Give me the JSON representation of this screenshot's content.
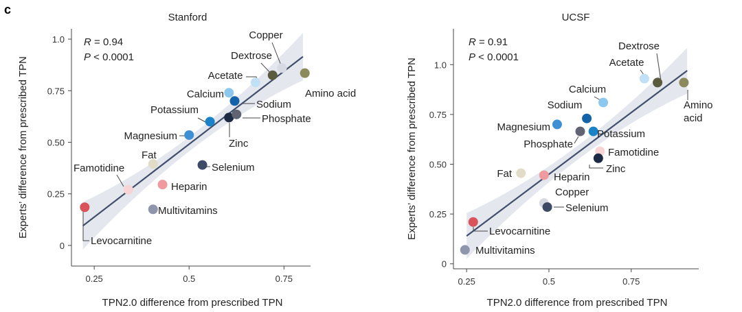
{
  "panel_letter": "c",
  "chart_data": [
    {
      "type": "scatter",
      "title": "Stanford",
      "xlabel": "TPN2.0 difference from prescribed TPN",
      "ylabel": "Experts’ difference from prescribed TPN",
      "xlim": [
        0.19,
        0.82
      ],
      "ylim": [
        -0.1,
        1.05
      ],
      "xticks": [
        0.25,
        0.5,
        0.75
      ],
      "xtick_labels": [
        "0.25",
        "0.5",
        "0.75"
      ],
      "yticks": [
        0,
        0.25,
        0.5,
        0.75,
        1.0
      ],
      "ytick_labels": [
        "0",
        "0.25",
        "0.50",
        "0.75",
        "1.0"
      ],
      "stat_r_label": "R",
      "stat_r_value": " = 0.94",
      "stat_p_label": "P",
      "stat_p_value": " < 0.0001",
      "fit": {
        "x": [
          0.22,
          0.8
        ],
        "y": [
          0.095,
          0.915
        ]
      },
      "points": [
        {
          "name": "Copper",
          "x": 0.745,
          "y": 0.86,
          "color": "#d7d9e3"
        },
        {
          "name": "Dextrose",
          "x": 0.72,
          "y": 0.825,
          "color": "#5b5b40"
        },
        {
          "name": "Acetate",
          "x": 0.675,
          "y": 0.79,
          "color": "#bfe0f5"
        },
        {
          "name": "Amino acid",
          "x": 0.805,
          "y": 0.835,
          "color": "#8c8a5c"
        },
        {
          "name": "Calcium",
          "x": 0.605,
          "y": 0.74,
          "color": "#8cc8ee"
        },
        {
          "name": "Sodium",
          "x": 0.62,
          "y": 0.7,
          "color": "#1463a8"
        },
        {
          "name": "Potassium",
          "x": 0.555,
          "y": 0.6,
          "color": "#1b82c8"
        },
        {
          "name": "Zinc",
          "x": 0.605,
          "y": 0.62,
          "color": "#1c2a44"
        },
        {
          "name": "Phosphate",
          "x": 0.625,
          "y": 0.635,
          "color": "#5f6372"
        },
        {
          "name": "Magnesium",
          "x": 0.5,
          "y": 0.535,
          "color": "#3f8fd4"
        },
        {
          "name": "Fat",
          "x": 0.405,
          "y": 0.395,
          "color": "#e0dcc5"
        },
        {
          "name": "Selenium",
          "x": 0.535,
          "y": 0.39,
          "color": "#3d4b66"
        },
        {
          "name": "Famotidine",
          "x": 0.34,
          "y": 0.27,
          "color": "#f9d4d4"
        },
        {
          "name": "Heparin",
          "x": 0.43,
          "y": 0.295,
          "color": "#ee9a9e"
        },
        {
          "name": "Multivitamins",
          "x": 0.405,
          "y": 0.175,
          "color": "#8e95ad"
        },
        {
          "name": "Levocarnitine",
          "x": 0.225,
          "y": 0.185,
          "color": "#d9535a"
        }
      ]
    },
    {
      "type": "scatter",
      "title": "UCSF",
      "xlabel": "TPN2.0 difference from prescribed TPN",
      "ylabel": "Experts’ difference from prescribed TPN",
      "xlim": [
        0.21,
        0.955
      ],
      "ylim": [
        -0.025,
        1.18
      ],
      "xticks": [
        0.25,
        0.5,
        0.75
      ],
      "xtick_labels": [
        "0.25",
        "0.5",
        "0.75"
      ],
      "yticks": [
        0,
        0.25,
        0.5,
        0.75,
        1.0
      ],
      "ytick_labels": [
        "0",
        "0.25",
        "0.50",
        "0.75",
        "1.0"
      ],
      "stat_r_label": "R",
      "stat_r_value": " = 0.91",
      "stat_p_label": "P",
      "stat_p_value": " < 0.0001",
      "fit": {
        "x": [
          0.25,
          0.92
        ],
        "y": [
          0.14,
          0.97
        ]
      },
      "points": [
        {
          "name": "Dextrose",
          "x": 0.83,
          "y": 0.91,
          "color": "#5b5b40"
        },
        {
          "name": "Acetate",
          "x": 0.79,
          "y": 0.93,
          "color": "#bfe0f5"
        },
        {
          "name": "Amino\nacid",
          "x": 0.91,
          "y": 0.91,
          "color": "#8c8a5c"
        },
        {
          "name": "Calcium",
          "x": 0.665,
          "y": 0.81,
          "color": "#8cc8ee"
        },
        {
          "name": "Sodium",
          "x": 0.615,
          "y": 0.73,
          "color": "#1463a8"
        },
        {
          "name": "Magnesium",
          "x": 0.525,
          "y": 0.7,
          "color": "#3f8fd4"
        },
        {
          "name": "Phosphate",
          "x": 0.595,
          "y": 0.665,
          "color": "#5f6372"
        },
        {
          "name": "Potassium",
          "x": 0.635,
          "y": 0.665,
          "color": "#1b82c8"
        },
        {
          "name": "Famotidine",
          "x": 0.655,
          "y": 0.565,
          "color": "#f9d4d4"
        },
        {
          "name": "Zinc",
          "x": 0.65,
          "y": 0.53,
          "color": "#1c2a44"
        },
        {
          "name": "Fat",
          "x": 0.415,
          "y": 0.455,
          "color": "#e0dcc5"
        },
        {
          "name": "Heparin",
          "x": 0.485,
          "y": 0.445,
          "color": "#ee9a9e"
        },
        {
          "name": "Copper",
          "x": 0.485,
          "y": 0.305,
          "color": "#d7d9e3"
        },
        {
          "name": "Selenium",
          "x": 0.495,
          "y": 0.285,
          "color": "#3d4b66"
        },
        {
          "name": "Levocarnitine",
          "x": 0.27,
          "y": 0.21,
          "color": "#d9535a"
        },
        {
          "name": "Multivitamins",
          "x": 0.245,
          "y": 0.07,
          "color": "#8e95ad"
        }
      ]
    }
  ]
}
